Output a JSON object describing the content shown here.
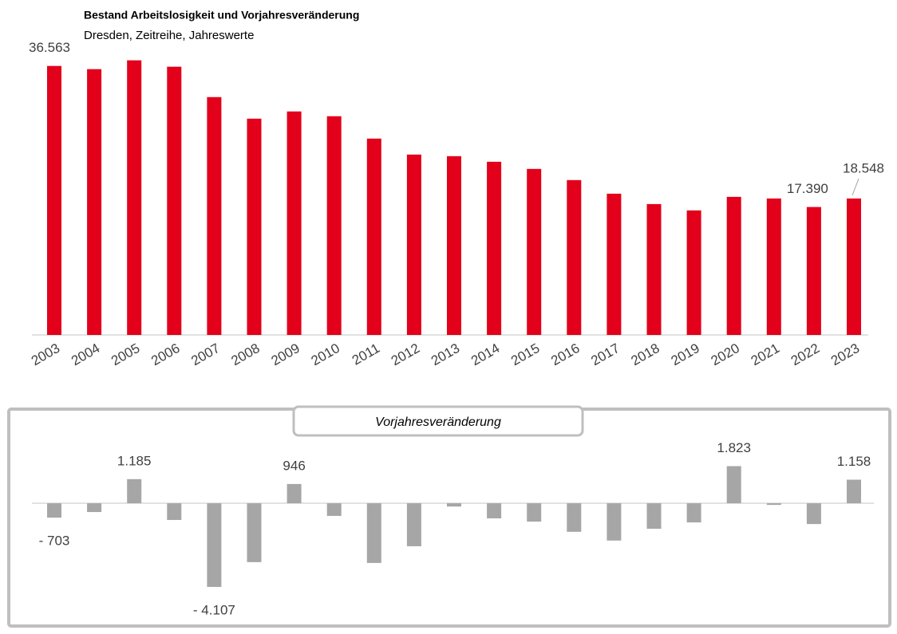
{
  "chart_data": [
    {
      "type": "bar",
      "title": "Bestand Arbeitslosigkeit und Vorjahresveränderung",
      "subtitle": "Dresden, Zeitreihe, Jahreswerte",
      "categories": [
        "2003",
        "2004",
        "2005",
        "2006",
        "2007",
        "2008",
        "2009",
        "2010",
        "2011",
        "2012",
        "2013",
        "2014",
        "2015",
        "2016",
        "2017",
        "2018",
        "2019",
        "2020",
        "2021",
        "2022",
        "2023"
      ],
      "values": [
        36563,
        36130,
        37330,
        36460,
        32330,
        29400,
        30380,
        29730,
        26690,
        24520,
        24300,
        23540,
        22570,
        21050,
        19200,
        17790,
        16930,
        18770,
        18550,
        17390,
        18548
      ],
      "value_labels": [
        "36.563",
        null,
        null,
        null,
        null,
        null,
        null,
        null,
        null,
        null,
        null,
        null,
        null,
        null,
        null,
        null,
        null,
        null,
        null,
        "17.390",
        "18.548"
      ],
      "color": "#e2001a",
      "ylim": [
        0,
        40000
      ]
    },
    {
      "type": "bar",
      "title": "Vorjahresveränderung",
      "values": [
        -703,
        -430,
        1185,
        -820,
        -4107,
        -2890,
        946,
        -620,
        -2930,
        -2110,
        -160,
        -740,
        -900,
        -1400,
        -1830,
        -1250,
        -940,
        1823,
        -80,
        -1020,
        1158
      ],
      "value_labels": [
        "- 703",
        null,
        "1.185",
        null,
        "- 4.107",
        null,
        "946",
        null,
        null,
        null,
        null,
        null,
        null,
        null,
        null,
        null,
        null,
        "1.823",
        null,
        null,
        "1.158"
      ],
      "color": "#a6a6a6",
      "ylim": [
        -4500,
        2000
      ]
    }
  ]
}
